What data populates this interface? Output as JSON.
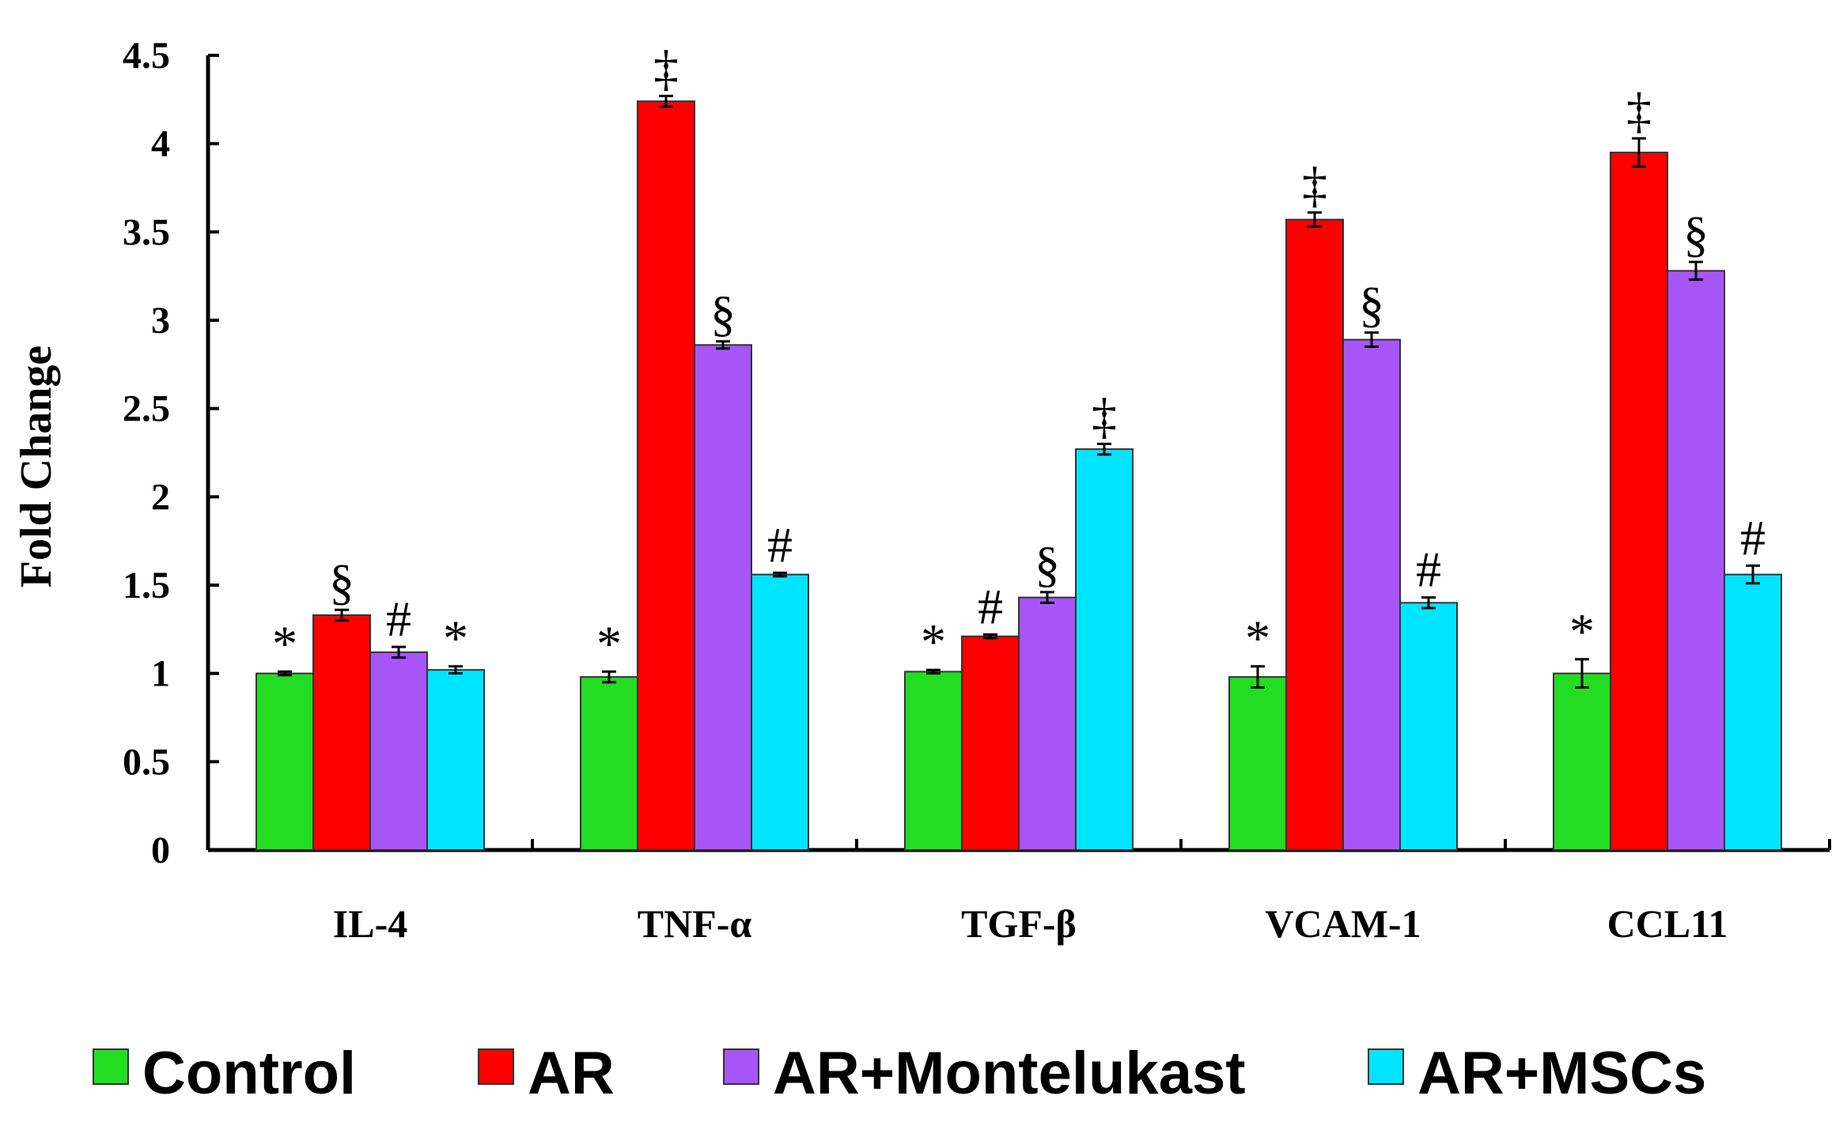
{
  "chart_data": {
    "type": "bar",
    "title": "",
    "xlabel": "",
    "ylabel": "Fold Change",
    "ylim": [
      0,
      4.5
    ],
    "yticks": [
      0,
      0.5,
      1,
      1.5,
      2,
      2.5,
      3,
      3.5,
      4,
      4.5
    ],
    "ytick_labels": [
      "0",
      "0.5",
      "1",
      "1.5",
      "2",
      "2.5",
      "3",
      "3.5",
      "4",
      "4.5"
    ],
    "grid": false,
    "legend_position": "bottom",
    "categories": [
      "IL-4",
      "TNF-α",
      "TGF-β",
      "VCAM-1",
      "CCL11"
    ],
    "series": [
      {
        "name": "Control",
        "color": "#22dd22",
        "values": [
          1.0,
          0.98,
          1.01,
          0.98,
          1.0
        ],
        "errors": [
          0.01,
          0.03,
          0.01,
          0.06,
          0.08
        ],
        "annotations": [
          "*",
          "*",
          "*",
          "*",
          "*"
        ]
      },
      {
        "name": "AR",
        "color": "#ff0000",
        "values": [
          1.33,
          4.24,
          1.21,
          3.57,
          3.95
        ],
        "errors": [
          0.03,
          0.03,
          0.01,
          0.04,
          0.08
        ],
        "annotations": [
          "§",
          "‡",
          "#",
          "‡",
          "‡"
        ]
      },
      {
        "name": "AR+Montelukast",
        "color": "#a855f7",
        "values": [
          1.12,
          2.86,
          1.43,
          2.89,
          3.28
        ],
        "errors": [
          0.03,
          0.02,
          0.03,
          0.04,
          0.05
        ],
        "annotations": [
          "#",
          "§",
          "§",
          "§",
          "§"
        ]
      },
      {
        "name": "AR+MSCs",
        "color": "#00e5ff",
        "values": [
          1.02,
          1.56,
          2.27,
          1.4,
          1.56
        ],
        "errors": [
          0.02,
          0.01,
          0.03,
          0.03,
          0.05
        ],
        "annotations": [
          "*",
          "#",
          "‡",
          "#",
          "#"
        ]
      }
    ]
  }
}
